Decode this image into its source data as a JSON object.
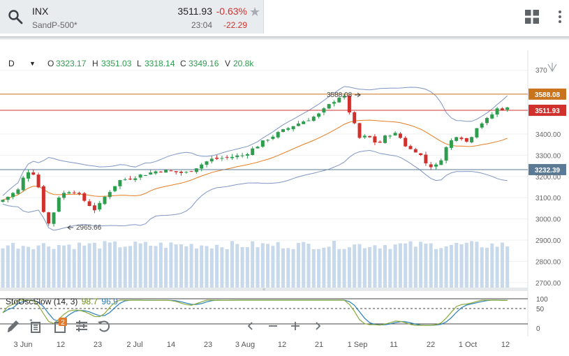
{
  "header": {
    "symbol": "INX",
    "index_name": "SandP-500*",
    "price": "3511.93",
    "change_pct": "-0.63%",
    "time": "23:04",
    "change_abs": "-22.29",
    "icons": [
      "search-icon",
      "star-icon",
      "layout-grid-icon",
      "more-vertical-icon"
    ]
  },
  "ohlc": {
    "timeframe": "D",
    "open_label": "O",
    "open": "3323.17",
    "high_label": "H",
    "high": "3351.03",
    "low_label": "L",
    "low": "3318.14",
    "close_label": "C",
    "close": "3349.16",
    "volume_label": "V",
    "volume": "20.8k"
  },
  "price_axis": {
    "ticks": [
      "3400.00",
      "3300.00",
      "3200.00",
      "3100.00",
      "3000.00",
      "2900.00",
      "2800.00",
      "2700.00"
    ],
    "top_tick_partial": "370",
    "markers": [
      {
        "label": "3588.08",
        "color": "#c9731d"
      },
      {
        "label": "3511.93",
        "color": "#d0312d"
      },
      {
        "label": "3232.39",
        "color": "#5a7a96"
      }
    ]
  },
  "annotations": {
    "high": "3588.08",
    "low": "2965.66"
  },
  "stochastic": {
    "name": "StoOscSlow (14, 3)",
    "k_value": "98.7",
    "d_value": "96.9",
    "axis": [
      "100",
      "50",
      "0"
    ]
  },
  "dates": [
    "3 Jun",
    "12",
    "23",
    "2 Jul",
    "14",
    "23",
    "3 Aug",
    "12",
    "21",
    "1 Sep",
    "11",
    "22",
    "1 Oct",
    "12"
  ],
  "toolbar": {
    "icons": [
      "pencil-icon",
      "drawing-tools-icon",
      "indicators-icon",
      "settings-icon",
      "reset-icon",
      "scroll-left-icon",
      "zoom-out-icon",
      "zoom-in-icon",
      "scroll-right-icon"
    ],
    "indicator_badge": "2"
  },
  "colors": {
    "up": "#2e9d4e",
    "down": "#d0312d",
    "sma": "#e67e22",
    "bands": "#7f96c4",
    "volume": "#c7d9ea",
    "stoch_k": "#8bab3a",
    "stoch_d": "#2a7fb8"
  }
}
